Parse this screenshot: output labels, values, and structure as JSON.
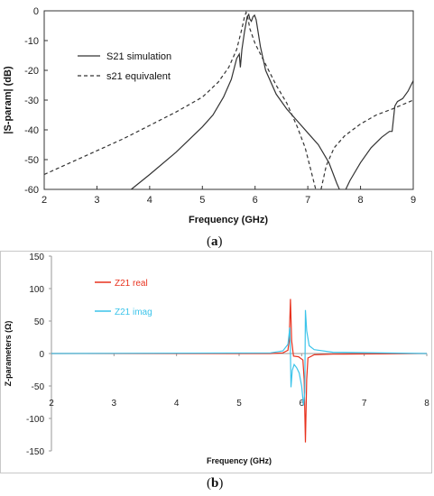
{
  "chart_data": [
    {
      "type": "line",
      "panel_label": "a",
      "xlabel": "Frequency (GHz)",
      "ylabel": "|S-param| (dB)",
      "xlim": [
        2,
        9
      ],
      "ylim": [
        -60,
        0
      ],
      "x_ticks": [
        2,
        3,
        4,
        5,
        6,
        7,
        8,
        9
      ],
      "y_ticks": [
        0,
        -10,
        -20,
        -30,
        -40,
        -50,
        -60
      ],
      "grid": false,
      "legend": "top-left",
      "series": [
        {
          "name": "S21 simulation",
          "style": "solid",
          "color": "#333333",
          "points": [
            [
              3.65,
              -60
            ],
            [
              4.0,
              -55
            ],
            [
              4.5,
              -47.5
            ],
            [
              5.0,
              -39
            ],
            [
              5.2,
              -35
            ],
            [
              5.4,
              -29
            ],
            [
              5.55,
              -23
            ],
            [
              5.65,
              -16
            ],
            [
              5.7,
              -14.5
            ],
            [
              5.72,
              -19
            ],
            [
              5.75,
              -13
            ],
            [
              5.8,
              -7
            ],
            [
              5.85,
              -2
            ],
            [
              5.88,
              -1.2
            ],
            [
              5.9,
              -2.8
            ],
            [
              5.93,
              -3.5
            ],
            [
              5.96,
              -2
            ],
            [
              5.99,
              -1.5
            ],
            [
              6.02,
              -3
            ],
            [
              6.1,
              -12
            ],
            [
              6.2,
              -20
            ],
            [
              6.4,
              -28
            ],
            [
              6.6,
              -33
            ],
            [
              6.8,
              -37
            ],
            [
              7.0,
              -41
            ],
            [
              7.2,
              -45
            ],
            [
              7.4,
              -51
            ],
            [
              7.55,
              -58
            ],
            [
              7.6,
              -60
            ]
          ]
        },
        {
          "name": "S21 simulation",
          "style": "solid",
          "color": "#333333",
          "points": [
            [
              7.72,
              -60
            ],
            [
              7.8,
              -57
            ],
            [
              8.0,
              -51
            ],
            [
              8.2,
              -46
            ],
            [
              8.4,
              -42.5
            ],
            [
              8.55,
              -40.5
            ],
            [
              8.6,
              -40.5
            ],
            [
              8.65,
              -32
            ],
            [
              8.7,
              -30.5
            ],
            [
              8.8,
              -29.5
            ],
            [
              8.9,
              -27
            ],
            [
              9.0,
              -23.5
            ]
          ]
        },
        {
          "name": "s21 equivalent",
          "style": "dashed",
          "color": "#333333",
          "points": [
            [
              2.0,
              -55
            ],
            [
              2.5,
              -51
            ],
            [
              3.0,
              -47
            ],
            [
              3.5,
              -43
            ],
            [
              4.0,
              -38.5
            ],
            [
              4.5,
              -34
            ],
            [
              5.0,
              -29
            ],
            [
              5.3,
              -24
            ],
            [
              5.5,
              -19
            ],
            [
              5.65,
              -13
            ],
            [
              5.75,
              -6
            ],
            [
              5.8,
              -2
            ],
            [
              5.83,
              -0.5
            ],
            [
              5.86,
              -2
            ],
            [
              5.9,
              -6
            ],
            [
              6.0,
              -11
            ],
            [
              6.2,
              -18
            ],
            [
              6.4,
              -25
            ],
            [
              6.6,
              -31
            ],
            [
              6.8,
              -39
            ],
            [
              6.95,
              -46
            ],
            [
              7.05,
              -53
            ],
            [
              7.15,
              -60
            ]
          ]
        },
        {
          "name": "s21 equivalent",
          "style": "dashed",
          "color": "#333333",
          "points": [
            [
              7.25,
              -60
            ],
            [
              7.35,
              -52
            ],
            [
              7.5,
              -46
            ],
            [
              7.7,
              -42
            ],
            [
              8.0,
              -38
            ],
            [
              8.3,
              -35
            ],
            [
              8.6,
              -33
            ],
            [
              9.0,
              -30
            ]
          ]
        }
      ],
      "legend_entries": [
        "S21 simulation",
        "s21 equivalent"
      ]
    },
    {
      "type": "line",
      "panel_label": "b",
      "xlabel": "Frequency (GHz)",
      "ylabel": "Z-parameters (Ω)",
      "xlim": [
        2,
        8
      ],
      "ylim": [
        -150,
        150
      ],
      "x_ticks": [
        2,
        3,
        4,
        5,
        6,
        7,
        8
      ],
      "y_ticks": [
        150,
        100,
        50,
        0,
        -50,
        -100,
        -150
      ],
      "grid": false,
      "legend": "top-left",
      "series": [
        {
          "name": "Z21 real",
          "color": "#e8321e",
          "points": [
            [
              2.0,
              0
            ],
            [
              5.5,
              0
            ],
            [
              5.7,
              1
            ],
            [
              5.78,
              5
            ],
            [
              5.8,
              20
            ],
            [
              5.82,
              84
            ],
            [
              5.84,
              20
            ],
            [
              5.87,
              -4
            ],
            [
              5.95,
              -5
            ],
            [
              6.02,
              -10
            ],
            [
              6.04,
              -40
            ],
            [
              6.06,
              -137
            ],
            [
              6.08,
              -40
            ],
            [
              6.1,
              -7
            ],
            [
              6.2,
              -2
            ],
            [
              6.5,
              -1
            ],
            [
              8.0,
              0
            ]
          ]
        },
        {
          "name": "Z21 imag",
          "color": "#3cc4ea",
          "points": [
            [
              2.0,
              0
            ],
            [
              5.5,
              1
            ],
            [
              5.7,
              4
            ],
            [
              5.78,
              14
            ],
            [
              5.81,
              40
            ],
            [
              5.82,
              0
            ],
            [
              5.83,
              -52
            ],
            [
              5.85,
              -26
            ],
            [
              5.88,
              -17
            ],
            [
              5.92,
              -22
            ],
            [
              5.96,
              -30
            ],
            [
              6.0,
              -50
            ],
            [
              6.03,
              -80
            ],
            [
              6.05,
              -60
            ],
            [
              6.06,
              67
            ],
            [
              6.08,
              35
            ],
            [
              6.12,
              12
            ],
            [
              6.2,
              6
            ],
            [
              6.5,
              2
            ],
            [
              8.0,
              0
            ]
          ]
        }
      ],
      "legend_entries": [
        "Z21 real",
        "Z21 imag"
      ]
    }
  ]
}
